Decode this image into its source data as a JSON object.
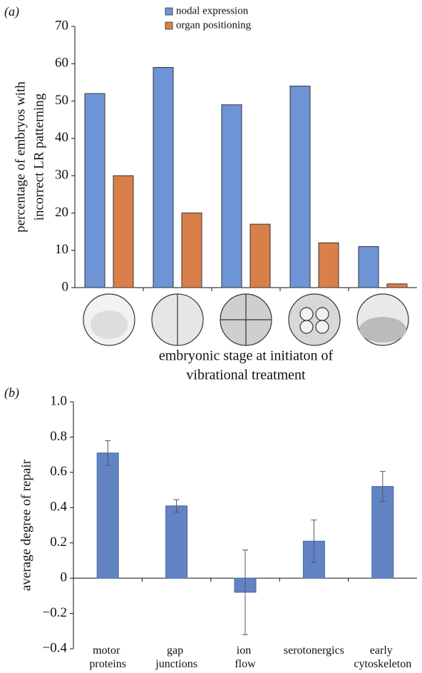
{
  "chart_data": [
    {
      "type": "bar",
      "panel_label": "(a)",
      "y_label": [
        "percentage of embryos with",
        "incorrect LR patterning"
      ],
      "x_label": [
        "embryonic stage at initiaton of",
        "vibrational treatment"
      ],
      "categories": [
        null,
        null,
        null,
        null,
        null
      ],
      "series": [
        {
          "name": "nodal expression",
          "color": "#6d95d6",
          "values": [
            52,
            59,
            49,
            54,
            11
          ]
        },
        {
          "name": "organ positioning",
          "color": "#d9804a",
          "values": [
            30,
            20,
            17,
            12,
            1
          ]
        }
      ],
      "ylim": [
        0,
        70
      ],
      "yticks": [
        0,
        10,
        20,
        30,
        40,
        50,
        60,
        70
      ],
      "legend": "upper center",
      "grid": false
    },
    {
      "type": "bar",
      "panel_label": "(b)",
      "y_label": [
        "average degree of repair"
      ],
      "categories": [
        "motor proteins",
        "gap junctions",
        "ion flow",
        "serotonergics",
        "early cytoskeleton"
      ],
      "color": "#6283c4",
      "values": [
        0.71,
        0.41,
        -0.08,
        0.21,
        0.52
      ],
      "errors": [
        0.07,
        0.035,
        0.24,
        0.12,
        0.085
      ],
      "ylim": [
        -0.4,
        1.0
      ],
      "yticks": [
        {
          "value": -0.4,
          "label": "−0.4"
        },
        {
          "value": -0.2,
          "label": "−0.2"
        },
        0,
        0.2,
        0.4,
        0.6,
        0.8,
        {
          "value": 1,
          "label": "1.0"
        }
      ],
      "grid": false
    }
  ]
}
